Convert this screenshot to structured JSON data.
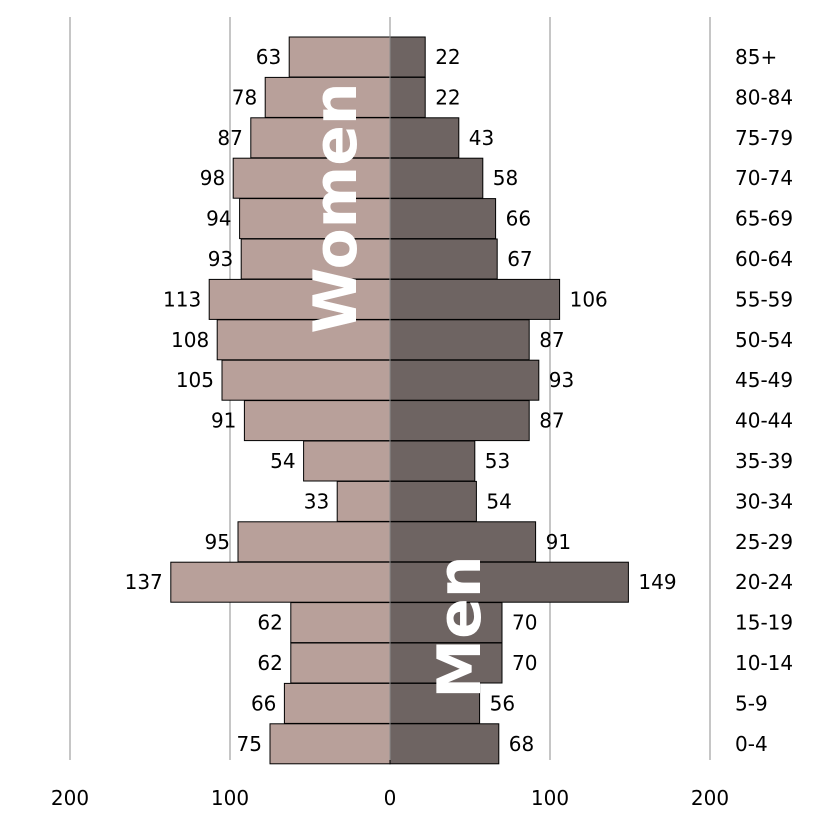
{
  "chart_data": {
    "type": "bar",
    "orientation": "horizontal-population-pyramid",
    "categories": [
      "85+",
      "80-84",
      "75-79",
      "70-74",
      "65-69",
      "60-64",
      "55-59",
      "50-54",
      "45-49",
      "40-44",
      "35-39",
      "30-34",
      "25-29",
      "20-24",
      "15-19",
      "10-14",
      "5-9",
      "0-4"
    ],
    "series": [
      {
        "name": "Women",
        "color": "#b8a09a",
        "side": "left",
        "values": [
          63,
          78,
          87,
          98,
          94,
          93,
          113,
          108,
          105,
          91,
          54,
          33,
          95,
          137,
          62,
          62,
          66,
          75
        ]
      },
      {
        "name": "Men",
        "color": "#6e6462",
        "side": "right",
        "values": [
          22,
          22,
          43,
          58,
          66,
          67,
          106,
          87,
          93,
          87,
          53,
          54,
          91,
          149,
          70,
          70,
          56,
          68
        ]
      }
    ],
    "x_ticks": [
      "200",
      "100",
      "0",
      "100",
      "200"
    ],
    "xlim": [
      -200,
      200
    ],
    "grid": "vertical lines at 100 and 200",
    "legend": "none (series names written on the bars)"
  }
}
